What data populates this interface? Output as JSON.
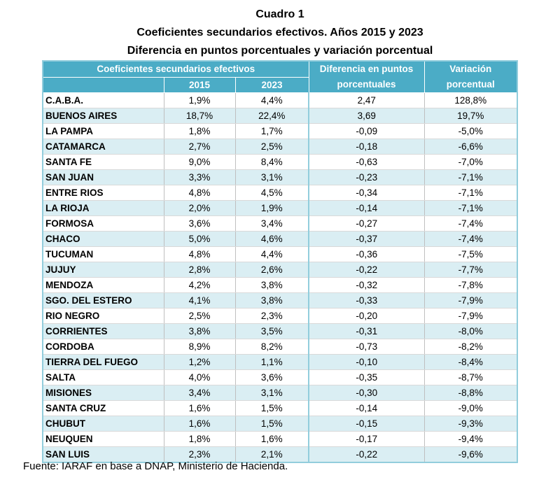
{
  "title": [
    "Cuadro 1",
    "Coeficientes secundarios efectivos. Años 2015 y 2023",
    "Diferencia en puntos porcentuales y variación porcentual"
  ],
  "header": {
    "group": "Coeficientes secundarios efectivos",
    "y2015": "2015",
    "y2023": "2023",
    "diff": "Diferencia en puntos porcentuales",
    "var": "Variación porcentual"
  },
  "colors": {
    "header": "#4BACC6",
    "alt_row": "#DAEEF3"
  },
  "rows": [
    [
      "C.A.B.A.",
      "1,9%",
      "4,4%",
      "2,47",
      "128,8%"
    ],
    [
      "BUENOS AIRES",
      "18,7%",
      "22,4%",
      "3,69",
      "19,7%"
    ],
    [
      "LA PAMPA",
      "1,8%",
      "1,7%",
      "-0,09",
      "-5,0%"
    ],
    [
      "CATAMARCA",
      "2,7%",
      "2,5%",
      "-0,18",
      "-6,6%"
    ],
    [
      "SANTA FE",
      "9,0%",
      "8,4%",
      "-0,63",
      "-7,0%"
    ],
    [
      "SAN JUAN",
      "3,3%",
      "3,1%",
      "-0,23",
      "-7,1%"
    ],
    [
      "ENTRE RIOS",
      "4,8%",
      "4,5%",
      "-0,34",
      "-7,1%"
    ],
    [
      "LA RIOJA",
      "2,0%",
      "1,9%",
      "-0,14",
      "-7,1%"
    ],
    [
      "FORMOSA",
      "3,6%",
      "3,4%",
      "-0,27",
      "-7,4%"
    ],
    [
      "CHACO",
      "5,0%",
      "4,6%",
      "-0,37",
      "-7,4%"
    ],
    [
      "TUCUMAN",
      "4,8%",
      "4,4%",
      "-0,36",
      "-7,5%"
    ],
    [
      "JUJUY",
      "2,8%",
      "2,6%",
      "-0,22",
      "-7,7%"
    ],
    [
      "MENDOZA",
      "4,2%",
      "3,8%",
      "-0,32",
      "-7,8%"
    ],
    [
      "SGO. DEL ESTERO",
      "4,1%",
      "3,8%",
      "-0,33",
      "-7,9%"
    ],
    [
      "RIO NEGRO",
      "2,5%",
      "2,3%",
      "-0,20",
      "-7,9%"
    ],
    [
      "CORRIENTES",
      "3,8%",
      "3,5%",
      "-0,31",
      "-8,0%"
    ],
    [
      "CORDOBA",
      "8,9%",
      "8,2%",
      "-0,73",
      "-8,2%"
    ],
    [
      "TIERRA DEL FUEGO",
      "1,2%",
      "1,1%",
      "-0,10",
      "-8,4%"
    ],
    [
      "SALTA",
      "4,0%",
      "3,6%",
      "-0,35",
      "-8,7%"
    ],
    [
      "MISIONES",
      "3,4%",
      "3,1%",
      "-0,30",
      "-8,8%"
    ],
    [
      "SANTA CRUZ",
      "1,6%",
      "1,5%",
      "-0,14",
      "-9,0%"
    ],
    [
      "CHUBUT",
      "1,6%",
      "1,5%",
      "-0,15",
      "-9,3%"
    ],
    [
      "NEUQUEN",
      "1,8%",
      "1,6%",
      "-0,17",
      "-9,4%"
    ],
    [
      "SAN LUIS",
      "2,3%",
      "2,1%",
      "-0,22",
      "-9,6%"
    ]
  ],
  "source": "Fuente: IARAF en base a DNAP, Ministerio de Hacienda."
}
